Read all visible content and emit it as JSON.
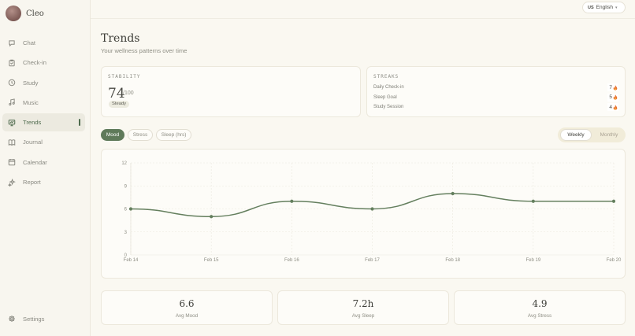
{
  "app": {
    "name": "Cleo"
  },
  "language": {
    "flag": "US",
    "label": "English"
  },
  "nav": {
    "items": [
      {
        "label": "Chat",
        "icon": "chat-bubble-icon"
      },
      {
        "label": "Check-in",
        "icon": "clipboard-icon"
      },
      {
        "label": "Study",
        "icon": "clock-icon"
      },
      {
        "label": "Music",
        "icon": "music-note-icon"
      },
      {
        "label": "Trends",
        "icon": "presentation-chart-icon",
        "active": true
      },
      {
        "label": "Journal",
        "icon": "book-icon"
      },
      {
        "label": "Calendar",
        "icon": "calendar-icon"
      },
      {
        "label": "Report",
        "icon": "sparkle-icon"
      }
    ],
    "settings_label": "Settings"
  },
  "header": {
    "title": "Trends",
    "subtitle": "Your wellness patterns over time"
  },
  "stability": {
    "label": "STABILITY",
    "value": "74",
    "max": "/100",
    "badge": "Steady"
  },
  "streaks": {
    "label": "STREAKS",
    "items": [
      {
        "name": "Daily Check-in",
        "count": "7"
      },
      {
        "name": "Sleep Goal",
        "count": "5"
      },
      {
        "name": "Study Session",
        "count": "4"
      }
    ]
  },
  "metric_tabs": [
    {
      "label": "Mood",
      "active": true
    },
    {
      "label": "Stress",
      "active": false
    },
    {
      "label": "Sleep (hrs)",
      "active": false
    }
  ],
  "range_toggle": [
    {
      "label": "Weekly",
      "active": true
    },
    {
      "label": "Monthly",
      "active": false
    }
  ],
  "colors": {
    "accent": "#5f7a5a",
    "line": "#647f5e",
    "flame": "#e8722e"
  },
  "chart_data": {
    "type": "line",
    "x": [
      "Feb 14",
      "Feb 15",
      "Feb 16",
      "Feb 17",
      "Feb 18",
      "Feb 19",
      "Feb 20"
    ],
    "series": [
      {
        "values": [
          6,
          5,
          7,
          6,
          8,
          7,
          7
        ]
      }
    ],
    "yticks": [
      "12",
      "9",
      "6",
      "3",
      "0"
    ],
    "ylim": [
      0,
      12
    ],
    "grid": true,
    "smooth": true
  },
  "stats": [
    {
      "value": "6.6",
      "label": "Avg Mood"
    },
    {
      "value": "7.2h",
      "label": "Avg Sleep"
    },
    {
      "value": "4.9",
      "label": "Avg Stress"
    }
  ]
}
